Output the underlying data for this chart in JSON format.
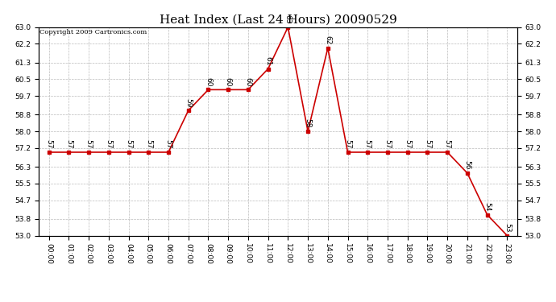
{
  "title": "Heat Index (Last 24 Hours) 20090529",
  "copyright": "Copyright 2009 Cartronics.com",
  "x_labels": [
    "00:00",
    "01:00",
    "02:00",
    "03:00",
    "04:00",
    "05:00",
    "06:00",
    "07:00",
    "08:00",
    "09:00",
    "10:00",
    "11:00",
    "12:00",
    "13:00",
    "14:00",
    "15:00",
    "16:00",
    "17:00",
    "18:00",
    "19:00",
    "20:00",
    "21:00",
    "22:00",
    "23:00"
  ],
  "y_values": [
    57,
    57,
    57,
    57,
    57,
    57,
    57,
    59,
    60,
    60,
    60,
    61,
    63,
    58,
    62,
    57,
    57,
    57,
    57,
    57,
    57,
    56,
    54,
    53
  ],
  "point_labels": [
    "57",
    "57",
    "57",
    "57",
    "57",
    "57",
    "57",
    "59",
    "60",
    "60",
    "60",
    "61",
    "63",
    "58",
    "62",
    "57",
    "57",
    "57",
    "57",
    "57",
    "57",
    "56",
    "54",
    "53"
  ],
  "line_color": "#cc0000",
  "marker_color": "#cc0000",
  "bg_color": "#ffffff",
  "plot_bg_color": "#ffffff",
  "grid_color": "#bbbbbb",
  "ylim_min": 53.0,
  "ylim_max": 63.0,
  "yticks": [
    53.0,
    53.8,
    54.7,
    55.5,
    56.3,
    57.2,
    58.0,
    58.8,
    59.7,
    60.5,
    61.3,
    62.2,
    63.0
  ],
  "title_fontsize": 11,
  "label_fontsize": 6.5,
  "copyright_fontsize": 6
}
